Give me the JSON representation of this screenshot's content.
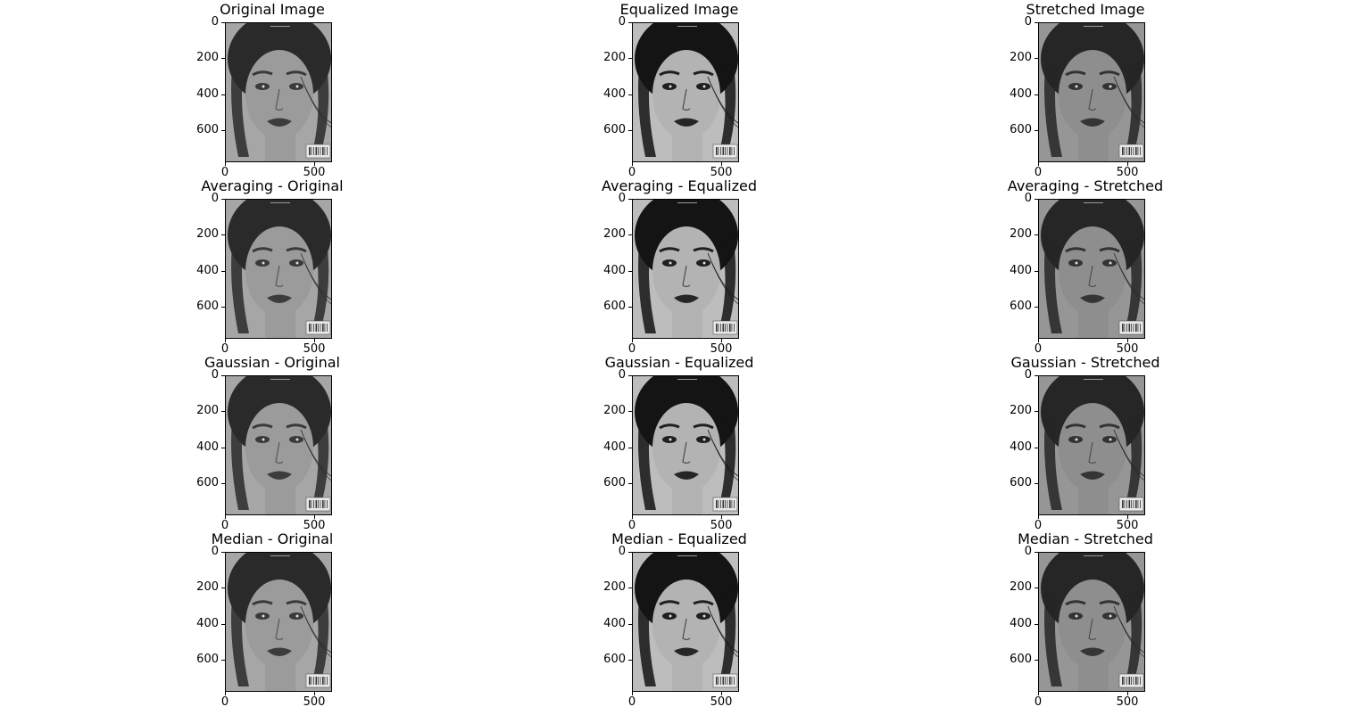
{
  "figure": {
    "panels": [
      {
        "title": "Original Image",
        "variant": "original"
      },
      {
        "title": "Equalized Image",
        "variant": "equalized"
      },
      {
        "title": "Stretched Image",
        "variant": "stretched"
      },
      {
        "title": "Averaging - Original",
        "variant": "original"
      },
      {
        "title": "Averaging - Equalized",
        "variant": "equalized"
      },
      {
        "title": "Averaging - Stretched",
        "variant": "stretched"
      },
      {
        "title": "Gaussian - Original",
        "variant": "original"
      },
      {
        "title": "Gaussian - Equalized",
        "variant": "equalized"
      },
      {
        "title": "Gaussian - Stretched",
        "variant": "stretched"
      },
      {
        "title": "Median - Original",
        "variant": "original"
      },
      {
        "title": "Median - Equalized",
        "variant": "equalized"
      },
      {
        "title": "Median - Stretched",
        "variant": "stretched"
      }
    ],
    "variant_colors": {
      "original": {
        "bg": "#a6a6a6",
        "skin": "#9b9b9b",
        "hair": "#2a2a2a",
        "feature": "#3a3a3a",
        "lip": "#3c3c3c"
      },
      "equalized": {
        "bg": "#bdbdbd",
        "skin": "#b3b3b3",
        "hair": "#141414",
        "feature": "#1f1f1f",
        "lip": "#262626"
      },
      "stretched": {
        "bg": "#969696",
        "skin": "#8e8e8e",
        "hair": "#262626",
        "feature": "#333333",
        "lip": "#353535"
      }
    }
  },
  "chart_data": {
    "type": "image-grid",
    "rows": 4,
    "cols": 3,
    "image_extent": {
      "width": 600,
      "height": 780
    },
    "x_ticks": [
      0,
      500
    ],
    "y_ticks": [
      0,
      200,
      400,
      600
    ],
    "x_tick_labels": [
      "0",
      "500"
    ],
    "y_tick_labels": [
      "0",
      "200",
      "400",
      "600"
    ]
  }
}
